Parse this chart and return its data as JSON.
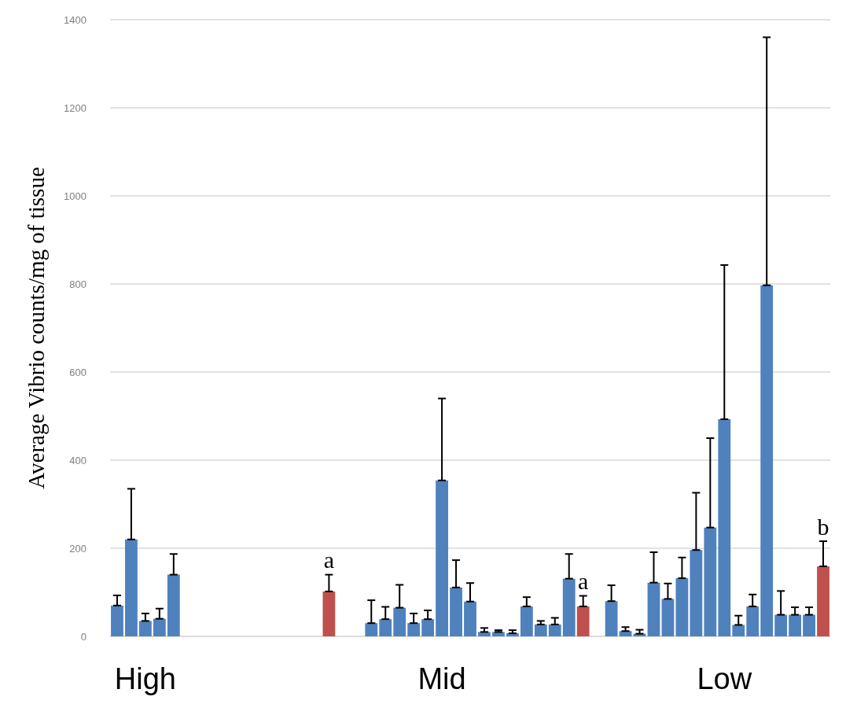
{
  "chart_data": {
    "type": "bar",
    "ylabel": "Average Vibrio counts/mg of tissue",
    "categories": [
      null,
      null,
      "High",
      null,
      null,
      null,
      null,
      null,
      null,
      null,
      null,
      null,
      null,
      null,
      null,
      null,
      null,
      null,
      null,
      null,
      null,
      null,
      null,
      "Mid",
      null,
      null,
      null,
      null,
      null,
      null,
      null,
      null,
      null,
      null,
      null,
      null,
      null,
      null,
      null,
      null,
      null,
      null,
      null,
      "Low",
      null,
      null,
      null,
      null,
      null,
      null,
      null
    ],
    "values": [
      70,
      220,
      35,
      40,
      140,
      null,
      null,
      null,
      null,
      null,
      null,
      null,
      null,
      null,
      null,
      102,
      null,
      null,
      30,
      39,
      65,
      30,
      39,
      354,
      111,
      79,
      10,
      10,
      7,
      68,
      27,
      27,
      131,
      68,
      null,
      80,
      12,
      6,
      122,
      85,
      132,
      196,
      247,
      493,
      26,
      68,
      797,
      49,
      49,
      49,
      159
    ],
    "errors": [
      [
        70,
        93
      ],
      [
        220,
        335
      ],
      [
        35,
        52
      ],
      [
        40,
        63
      ],
      [
        140,
        187
      ],
      null,
      null,
      null,
      null,
      null,
      null,
      null,
      null,
      null,
      null,
      [
        102,
        140
      ],
      null,
      null,
      [
        30,
        82
      ],
      [
        39,
        67
      ],
      [
        65,
        117
      ],
      [
        30,
        52
      ],
      [
        39,
        59
      ],
      [
        354,
        540
      ],
      [
        111,
        173
      ],
      [
        79,
        121
      ],
      [
        10,
        19
      ],
      [
        10,
        14
      ],
      [
        7,
        14
      ],
      [
        68,
        89
      ],
      [
        27,
        35
      ],
      [
        27,
        42
      ],
      [
        131,
        187
      ],
      [
        68,
        92
      ],
      null,
      [
        80,
        116
      ],
      [
        12,
        21
      ],
      [
        6,
        15
      ],
      [
        122,
        191
      ],
      [
        85,
        120
      ],
      [
        132,
        179
      ],
      [
        196,
        326
      ],
      [
        247,
        450
      ],
      [
        493,
        843
      ],
      [
        26,
        47
      ],
      [
        68,
        95
      ],
      [
        797,
        1360
      ],
      [
        49,
        103
      ],
      [
        49,
        66
      ],
      [
        49,
        66
      ],
      [
        159,
        216
      ]
    ],
    "colors": [
      "#4f81bd",
      "#4f81bd",
      "#4f81bd",
      "#4f81bd",
      "#4f81bd",
      null,
      null,
      null,
      null,
      null,
      null,
      null,
      null,
      null,
      null,
      "#c0504d",
      null,
      null,
      "#4f81bd",
      "#4f81bd",
      "#4f81bd",
      "#4f81bd",
      "#4f81bd",
      "#4f81bd",
      "#4f81bd",
      "#4f81bd",
      "#4f81bd",
      "#4f81bd",
      "#4f81bd",
      "#4f81bd",
      "#4f81bd",
      "#4f81bd",
      "#4f81bd",
      "#c0504d",
      null,
      "#4f81bd",
      "#4f81bd",
      "#4f81bd",
      "#4f81bd",
      "#4f81bd",
      "#4f81bd",
      "#4f81bd",
      "#4f81bd",
      "#4f81bd",
      "#4f81bd",
      "#4f81bd",
      "#4f81bd",
      "#4f81bd",
      "#4f81bd",
      "#4f81bd",
      "#c0504d"
    ],
    "value_labels": [
      null,
      null,
      null,
      null,
      null,
      null,
      null,
      null,
      null,
      null,
      null,
      null,
      null,
      null,
      null,
      "a",
      null,
      null,
      null,
      null,
      null,
      null,
      null,
      null,
      null,
      null,
      null,
      null,
      null,
      null,
      null,
      null,
      null,
      "a",
      null,
      null,
      null,
      null,
      null,
      null,
      null,
      null,
      null,
      null,
      null,
      null,
      null,
      null,
      null,
      null,
      "b"
    ],
    "ylim": [
      0,
      1400
    ],
    "yticks": [
      0,
      200,
      400,
      600,
      800,
      1000,
      1200,
      1400
    ],
    "grid": "y"
  }
}
